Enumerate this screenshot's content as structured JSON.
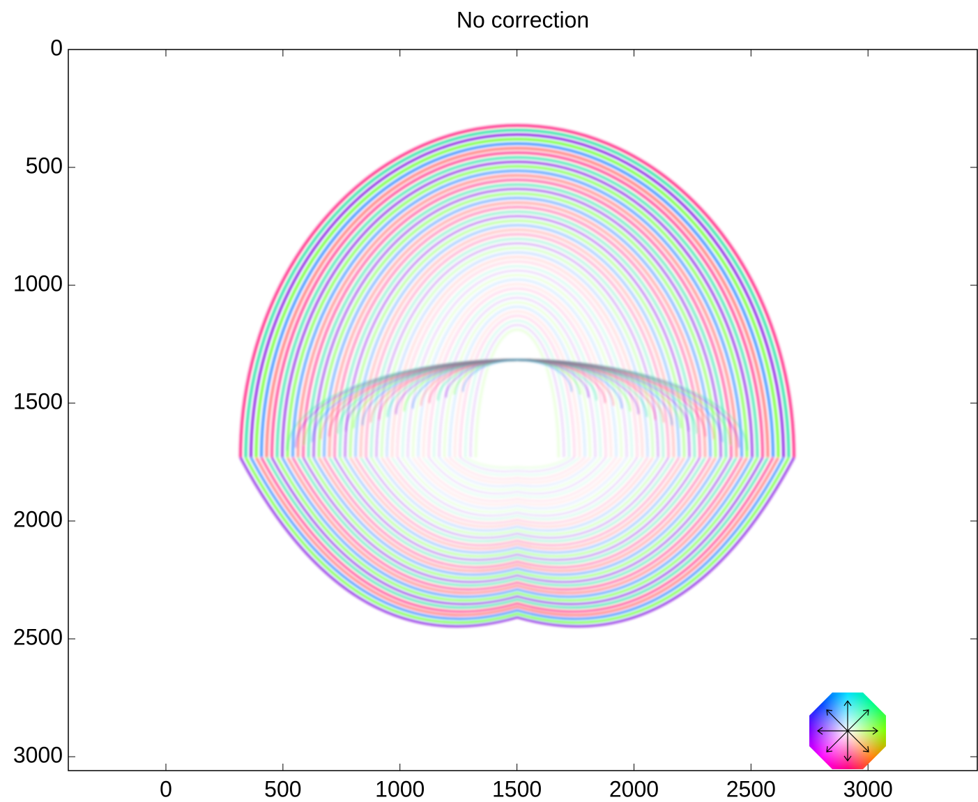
{
  "chart_data": {
    "type": "image",
    "title": "No correction",
    "xlim": [
      -417,
      3467
    ],
    "xticks": [
      0,
      500,
      1000,
      1500,
      2000,
      2500,
      3000
    ],
    "ylim": [
      3059,
      0
    ],
    "yticks": [
      0,
      500,
      1000,
      1500,
      2000,
      2500,
      3000
    ]
  }
}
